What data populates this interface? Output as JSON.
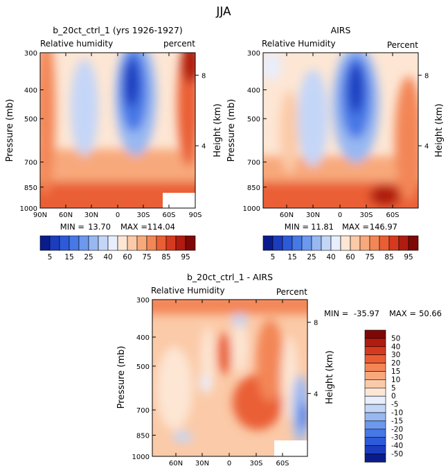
{
  "figure_title": "JJA",
  "colors": {
    "rh_palette": [
      "#0a1c8c",
      "#1c3cc0",
      "#2d5ad8",
      "#4678e6",
      "#6c98ee",
      "#98b8f2",
      "#c4d6f8",
      "#e8eefc",
      "#fde6d4",
      "#fbcaa8",
      "#f8a97c",
      "#f38656",
      "#ea5e34",
      "#d53a1e",
      "#b01c10",
      "#7e0806"
    ],
    "diff_palette": [
      "#0a1c8c",
      "#1c3cc0",
      "#2d5ad8",
      "#4678e6",
      "#6c98ee",
      "#98b8f2",
      "#c4d6f8",
      "#e8eefc",
      "#fde6d4",
      "#fbcaa8",
      "#f8a97c",
      "#f38656",
      "#ea5e34",
      "#d53a1e",
      "#b01c10",
      "#7e0806"
    ]
  },
  "rh_labelbar": {
    "labels": [
      "5",
      "15",
      "25",
      "40",
      "60",
      "75",
      "85",
      "95"
    ]
  },
  "diff_labelbar": {
    "labels": [
      "50",
      "40",
      "30",
      "20",
      "15",
      "10",
      "5",
      "0",
      "-5",
      "-10",
      "-15",
      "-20",
      "-30",
      "-40",
      "-50"
    ]
  },
  "chart_data": [
    {
      "type": "heatmap",
      "title": "b_20ct_ctrl_1 (yrs 1926-1927)",
      "subtitle_left": "Relative humidity",
      "subtitle_right": "percent",
      "xlabel": "",
      "ylabel": "Pressure (mb)",
      "ylabel_right": "Height (km)",
      "x_ticks": [
        "90N",
        "60N",
        "30N",
        "0",
        "30S",
        "60S",
        "90S"
      ],
      "y_ticks": [
        "300",
        "400",
        "500",
        "700",
        "850",
        "1000"
      ],
      "y_right_ticks": [
        "8",
        "4"
      ],
      "stats": {
        "min_label": "MIN =",
        "min": "13.70",
        "max_label": "MAX =",
        "max": "114.04"
      },
      "field": {
        "moist_near_surface": 85,
        "dry_subsidence_min_south": 5,
        "dry_subsidence_min_north": 35,
        "upper_polar_south": 95
      }
    },
    {
      "type": "heatmap",
      "title": "AIRS",
      "subtitle_left": "Relative Humidity",
      "subtitle_right": "Percent",
      "xlabel": "",
      "ylabel": "Pressure (mb)",
      "ylabel_right": "Height (km)",
      "x_ticks": [
        "60N",
        "30N",
        "0",
        "30S",
        "60S"
      ],
      "y_ticks": [
        "300",
        "400",
        "500",
        "700",
        "850",
        "1000"
      ],
      "y_right_ticks": [
        "8",
        "4"
      ],
      "stats": {
        "min_label": "MIN =",
        "min": "11.81",
        "max_label": "MAX =",
        "max": "146.97"
      },
      "field": {
        "moist_near_surface": 85,
        "dry_subsidence_min_south": 5,
        "dry_subsidence_min_north": 30,
        "upper_polar_south": 80
      }
    },
    {
      "type": "heatmap",
      "title": "b_20ct_ctrl_1 - AIRS",
      "subtitle_left": "Relative Humidity",
      "subtitle_right": "Percent",
      "xlabel": "",
      "ylabel": "Pressure (mb)",
      "ylabel_right": "Height (km)",
      "x_ticks": [
        "60N",
        "30N",
        "0",
        "30S",
        "60S"
      ],
      "y_ticks": [
        "300",
        "400",
        "500",
        "700",
        "850",
        "1000"
      ],
      "y_right_ticks": [
        "8",
        "4"
      ],
      "stats": {
        "min_label": "MIN =",
        "min": "-35.97",
        "max_label": "MAX =",
        "max": "50.66"
      },
      "field": {
        "background": 12,
        "upper_band": 22,
        "southern_mid_max": 30,
        "southern_high_lat_min": -15
      }
    }
  ]
}
